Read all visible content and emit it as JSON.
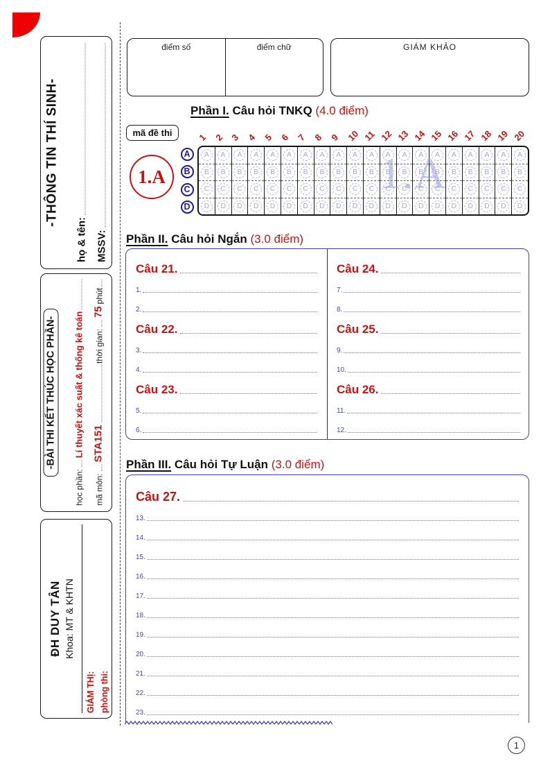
{
  "page": {
    "number": "1"
  },
  "header": {
    "score_label": "điểm số",
    "grade_label": "điểm chữ",
    "examiner_label": "GIÁM KHẢO"
  },
  "sidebar": {
    "student_box": {
      "title": "-THÔNG TIN THÍ SINH-",
      "name_label": "họ & tên:",
      "id_label": "MSSV:"
    },
    "exam_box": {
      "title": "-BÀI THI KẾT THÚC HỌC PHẦN-",
      "course_label": "học phần:",
      "course_value": "Lí thuyết xác suất & thống kê toán",
      "code_label": "mã môn:",
      "code_value": "STA151",
      "time_label": "thời gian:",
      "time_value": "75",
      "time_unit": "phút"
    },
    "school_box": {
      "university": "ĐH DUY TÂN",
      "faculty": "Khoa: MT & KHTN",
      "proctor_label": "GIÁM THỊ:",
      "room_label": "phòng thi:"
    }
  },
  "part1": {
    "heading": {
      "part": "Phần I.",
      "title": "Câu hỏi TNKQ",
      "points": "(4.0 điểm)"
    },
    "exam_code_label": "mã đề thi",
    "exam_code": "1.A",
    "watermark": "1.A",
    "question_numbers": [
      "1",
      "2",
      "3",
      "4",
      "5",
      "6",
      "7",
      "8",
      "9",
      "10",
      "11",
      "12",
      "13",
      "14",
      "15",
      "16",
      "17",
      "18",
      "19",
      "20"
    ],
    "options": [
      "A",
      "B",
      "C",
      "D"
    ]
  },
  "part2": {
    "heading": {
      "part": "Phần II.",
      "title": "Câu hỏi Ngắn",
      "points": "(3.0 điểm)"
    },
    "columns": {
      "left": [
        {
          "question": "Câu 21.",
          "lines": [
            "1",
            "2"
          ]
        },
        {
          "question": "Câu 22.",
          "lines": [
            "3",
            "4"
          ]
        },
        {
          "question": "Câu 23.",
          "lines": [
            "5",
            "6"
          ]
        }
      ],
      "right": [
        {
          "question": "Câu 24.",
          "lines": [
            "7",
            "8"
          ]
        },
        {
          "question": "Câu 25.",
          "lines": [
            "9",
            "10"
          ]
        },
        {
          "question": "Câu 26.",
          "lines": [
            "11",
            "12"
          ]
        }
      ]
    }
  },
  "part3": {
    "heading": {
      "part": "Phần III.",
      "title": "Câu hỏi Tự Luận",
      "points": "(3.0 điểm)"
    },
    "question": "Câu 27.",
    "lines": [
      "13",
      "14",
      "15",
      "16",
      "17",
      "18",
      "19",
      "20",
      "21",
      "22",
      "23"
    ]
  },
  "colors": {
    "accent_red": "#cc1111",
    "logo_red": "#ee0000",
    "box_blue": "#4040b2",
    "bubble_blue": "#a8aede",
    "label_navy": "#1a1aa0"
  }
}
